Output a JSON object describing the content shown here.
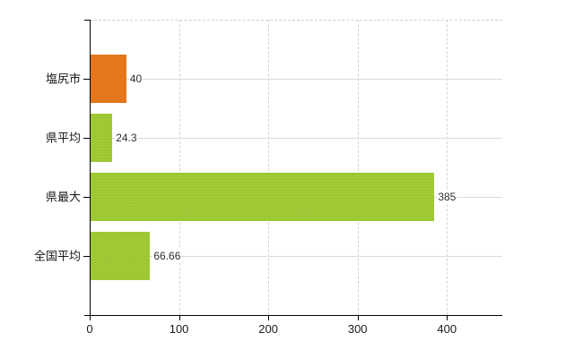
{
  "chart": {
    "title": "",
    "background": "#ffffff"
  },
  "colors": {
    "bar_highlight": "#e6791c",
    "bar_default": "#a0cb35",
    "grid_vertical": "#d4d4d4",
    "grid_horizontal": "#d6ded2",
    "plot_top_border": "#d1cece",
    "axis": "#000000",
    "category_text": "#1a1a1a",
    "value_text": "#2e2e2e"
  },
  "chart_data": {
    "type": "bar",
    "orientation": "horizontal",
    "title": "",
    "xlabel": "",
    "ylabel": "",
    "categories": [
      "塩尻市",
      "県平均",
      "県最大",
      "全国平均"
    ],
    "values": [
      40,
      24.3,
      385,
      66.66
    ],
    "value_labels": [
      "40",
      "24.3",
      "385",
      "66.66"
    ],
    "bar_colors": [
      "#e6791c",
      "#a0cb35",
      "#a0cb35",
      "#a0cb35"
    ],
    "x_ticks": [
      0,
      100,
      200,
      300,
      400
    ],
    "x_tick_labels": [
      "0",
      "100",
      "200",
      "300",
      "400"
    ],
    "xlim": [
      0,
      462
    ],
    "grid": true,
    "legend": false
  }
}
